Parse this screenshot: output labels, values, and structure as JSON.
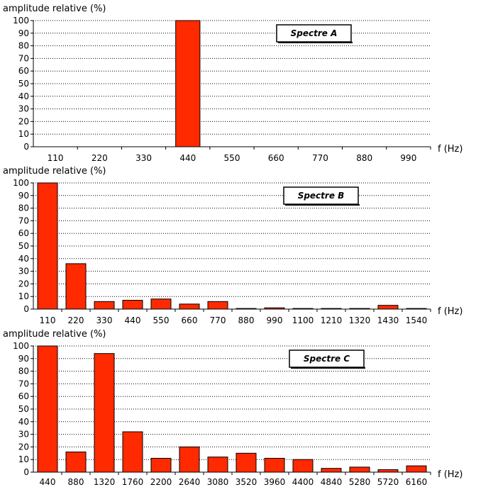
{
  "chart_data": [
    {
      "type": "bar",
      "ylabel": "amplitude relative (%)",
      "xlabel": "f (Hz)",
      "legend": "Spectre A",
      "legend_position": "top-right",
      "ylim": [
        0,
        100
      ],
      "yticks": [
        0,
        10,
        20,
        30,
        40,
        50,
        60,
        70,
        80,
        90,
        100
      ],
      "grid": "horizontal dotted",
      "bar_color": "#ff2a00",
      "categories": [
        "110",
        "220",
        "330",
        "440",
        "550",
        "660",
        "770",
        "880",
        "990"
      ],
      "values": [
        0,
        0,
        0,
        100,
        0,
        0,
        0,
        0,
        0
      ]
    },
    {
      "type": "bar",
      "ylabel": "amplitude relative (%)",
      "xlabel": "f (Hz)",
      "legend": "Spectre B",
      "legend_position": "top-right",
      "ylim": [
        0,
        100
      ],
      "yticks": [
        0,
        10,
        20,
        30,
        40,
        50,
        60,
        70,
        80,
        90,
        100
      ],
      "grid": "horizontal dotted",
      "bar_color": "#ff2a00",
      "categories": [
        "110",
        "220",
        "330",
        "440",
        "550",
        "660",
        "770",
        "880",
        "990",
        "1100",
        "1210",
        "1320",
        "1430",
        "1540"
      ],
      "values": [
        100,
        36,
        6,
        7,
        8,
        4,
        6,
        0.5,
        1,
        0.5,
        0.5,
        0.5,
        3,
        0.5
      ]
    },
    {
      "type": "bar",
      "ylabel": "amplitude relative (%)",
      "xlabel": "f (Hz)",
      "legend": "Spectre C",
      "legend_position": "top-right",
      "ylim": [
        0,
        100
      ],
      "yticks": [
        0,
        10,
        20,
        30,
        40,
        50,
        60,
        70,
        80,
        90,
        100
      ],
      "grid": "horizontal dotted",
      "bar_color": "#ff2a00",
      "categories": [
        "440",
        "880",
        "1320",
        "1760",
        "2200",
        "2640",
        "3080",
        "3520",
        "3960",
        "4400",
        "4840",
        "5280",
        "5720",
        "6160"
      ],
      "values": [
        100,
        16,
        94,
        32,
        11,
        20,
        12,
        15,
        11,
        10,
        3,
        4,
        2,
        5
      ]
    }
  ]
}
